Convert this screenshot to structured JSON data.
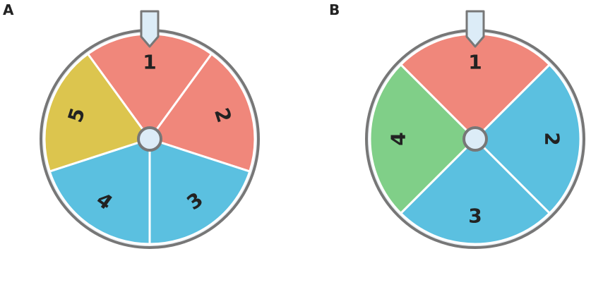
{
  "panels": [
    {
      "label": "A",
      "sectors": [
        {
          "label": "1",
          "color": "#f0877b"
        },
        {
          "label": "2",
          "color": "#f0877b"
        },
        {
          "label": "3",
          "color": "#5bc0e0"
        },
        {
          "label": "4",
          "color": "#5bc0e0"
        },
        {
          "label": "5",
          "color": "#dcc54e"
        }
      ]
    },
    {
      "label": "B",
      "sectors": [
        {
          "label": "1",
          "color": "#f0877b"
        },
        {
          "label": "2",
          "color": "#5bc0e0"
        },
        {
          "label": "3",
          "color": "#5bc0e0"
        },
        {
          "label": "4",
          "color": "#80cf88"
        }
      ]
    }
  ]
}
